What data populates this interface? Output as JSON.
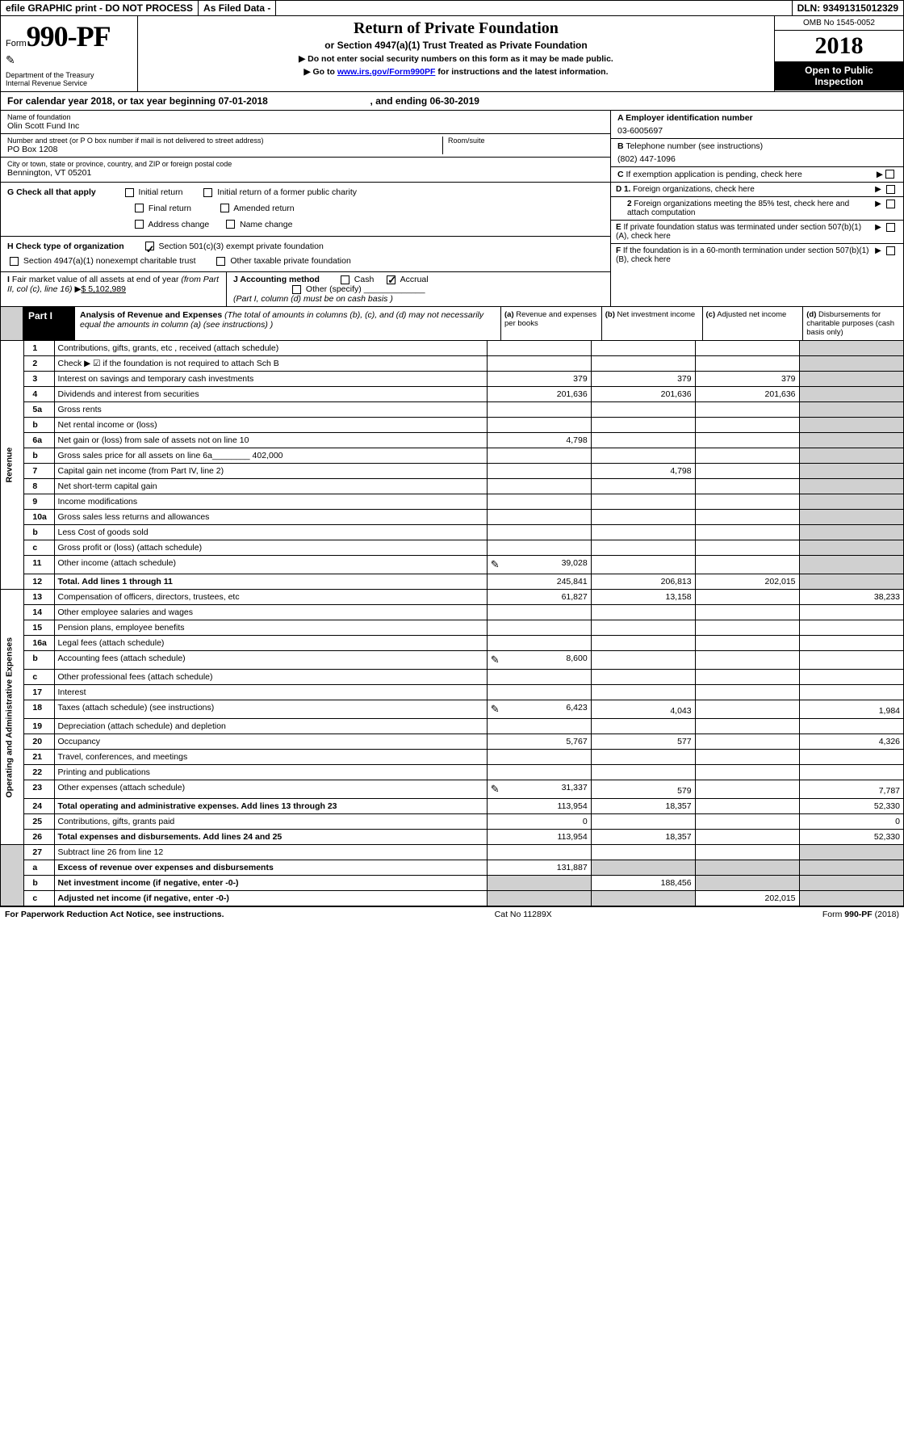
{
  "efile": {
    "left": "efile GRAPHIC print - DO NOT PROCESS",
    "mid": "As Filed Data -",
    "dln": "DLN: 93491315012329"
  },
  "header": {
    "form_word": "Form",
    "form_num": "990-PF",
    "dept1": "Department of the Treasury",
    "dept2": "Internal Revenue Service",
    "title": "Return of Private Foundation",
    "subtitle": "or Section 4947(a)(1) Trust Treated as Private Foundation",
    "instr1": "▶ Do not enter social security numbers on this form as it may be made public.",
    "instr2_pre": "▶ Go to ",
    "instr2_link": "www.irs.gov/Form990PF",
    "instr2_post": " for instructions and the latest information.",
    "omb": "OMB No 1545-0052",
    "year": "2018",
    "inspect1": "Open to Public",
    "inspect2": "Inspection"
  },
  "calyear": {
    "pre": "For calendar year 2018, or tax year beginning ",
    "begin": "07-01-2018",
    "mid": " , and ending ",
    "end": "06-30-2019"
  },
  "id": {
    "name_lbl": "Name of foundation",
    "name": "Olin Scott Fund Inc",
    "addr_lbl": "Number and street (or P O  box number if mail is not delivered to street address)",
    "addr": "PO Box 1208",
    "room_lbl": "Room/suite",
    "city_lbl": "City or town, state or province, country, and ZIP or foreign postal code",
    "city": "Bennington, VT  05201",
    "a_lbl": "A Employer identification number",
    "a_val": "03-6005697",
    "b_lbl": "B Telephone number (see instructions)",
    "b_val": "(802) 447-1096",
    "c_lbl": "C If exemption application is pending, check here"
  },
  "checks": {
    "g_lbl": "G Check all that apply",
    "g_items": [
      "Initial return",
      "Initial return of a former public charity",
      "Final return",
      "Amended return",
      "Address change",
      "Name change"
    ],
    "h_lbl": "H Check type of organization",
    "h1": "Section 501(c)(3) exempt private foundation",
    "h2": "Section 4947(a)(1) nonexempt charitable trust",
    "h3": "Other taxable private foundation",
    "i_lbl": "I Fair market value of all assets at end of year (from Part II, col (c), line 16) ▶",
    "i_val": "$  5,102,989",
    "j_lbl": "J Accounting method",
    "j_cash": "Cash",
    "j_accr": "Accrual",
    "j_other": "Other (specify)",
    "j_note": "(Part I, column (d) must be on cash basis )",
    "d1": "D 1. Foreign organizations, check here",
    "d2": "2 Foreign organizations meeting the 85% test, check here and attach computation",
    "e": "E  If private foundation status was terminated under section 507(b)(1)(A), check here",
    "f": "F  If the foundation is in a 60-month termination under section 507(b)(1)(B), check here"
  },
  "part1": {
    "label": "Part I",
    "head": "Analysis of Revenue and Expenses",
    "head_note": " (The total of amounts in columns (b), (c), and (d) may not necessarily equal the amounts in column (a) (see instructions) )",
    "col_a": "(a) Revenue and expenses per books",
    "col_b": "(b) Net investment income",
    "col_c": "(c) Adjusted net income",
    "col_d": "(d) Disbursements for charitable purposes (cash basis only)"
  },
  "side": {
    "rev": "Revenue",
    "exp": "Operating and Administrative Expenses"
  },
  "rows": [
    {
      "n": "1",
      "d": "Contributions, gifts, grants, etc , received (attach schedule)",
      "a": "",
      "b": "",
      "c": "",
      "dd": "",
      "bgrey": false
    },
    {
      "n": "2",
      "d": "Check ▶ ☑ if the foundation is not required to attach Sch B",
      "a": "",
      "b": "",
      "c": "",
      "dd": ""
    },
    {
      "n": "3",
      "d": "Interest on savings and temporary cash investments",
      "a": "379",
      "b": "379",
      "c": "379",
      "dd": ""
    },
    {
      "n": "4",
      "d": "Dividends and interest from securities",
      "a": "201,636",
      "b": "201,636",
      "c": "201,636",
      "dd": ""
    },
    {
      "n": "5a",
      "d": "Gross rents",
      "a": "",
      "b": "",
      "c": "",
      "dd": ""
    },
    {
      "n": "b",
      "d": "Net rental income or (loss)",
      "a": "",
      "b": "",
      "c": "",
      "dd": ""
    },
    {
      "n": "6a",
      "d": "Net gain or (loss) from sale of assets not on line 10",
      "a": "4,798",
      "b": "",
      "c": "",
      "dd": ""
    },
    {
      "n": "b",
      "d": "Gross sales price for all assets on line 6a________ 402,000",
      "a": "",
      "b": "",
      "c": "",
      "dd": ""
    },
    {
      "n": "7",
      "d": "Capital gain net income (from Part IV, line 2)",
      "a": "",
      "b": "4,798",
      "c": "",
      "dd": ""
    },
    {
      "n": "8",
      "d": "Net short-term capital gain",
      "a": "",
      "b": "",
      "c": "",
      "dd": ""
    },
    {
      "n": "9",
      "d": "Income modifications",
      "a": "",
      "b": "",
      "c": "",
      "dd": ""
    },
    {
      "n": "10a",
      "d": "Gross sales less returns and allowances",
      "a": "",
      "b": "",
      "c": "",
      "dd": ""
    },
    {
      "n": "b",
      "d": "Less  Cost of goods sold",
      "a": "",
      "b": "",
      "c": "",
      "dd": ""
    },
    {
      "n": "c",
      "d": "Gross profit or (loss) (attach schedule)",
      "a": "",
      "b": "",
      "c": "",
      "dd": ""
    },
    {
      "n": "11",
      "d": "Other income (attach schedule)",
      "a": "39,028",
      "b": "",
      "c": "",
      "dd": "",
      "ic": true
    },
    {
      "n": "12",
      "d": "Total. Add lines 1 through 11",
      "a": "245,841",
      "b": "206,813",
      "c": "202,015",
      "dd": "",
      "bold": true
    }
  ],
  "exp_rows": [
    {
      "n": "13",
      "d": "Compensation of officers, directors, trustees, etc",
      "a": "61,827",
      "b": "13,158",
      "c": "",
      "dd": "38,233"
    },
    {
      "n": "14",
      "d": "Other employee salaries and wages",
      "a": "",
      "b": "",
      "c": "",
      "dd": ""
    },
    {
      "n": "15",
      "d": "Pension plans, employee benefits",
      "a": "",
      "b": "",
      "c": "",
      "dd": ""
    },
    {
      "n": "16a",
      "d": "Legal fees (attach schedule)",
      "a": "",
      "b": "",
      "c": "",
      "dd": ""
    },
    {
      "n": "b",
      "d": "Accounting fees (attach schedule)",
      "a": "8,600",
      "b": "",
      "c": "",
      "dd": "",
      "ic": true
    },
    {
      "n": "c",
      "d": "Other professional fees (attach schedule)",
      "a": "",
      "b": "",
      "c": "",
      "dd": ""
    },
    {
      "n": "17",
      "d": "Interest",
      "a": "",
      "b": "",
      "c": "",
      "dd": ""
    },
    {
      "n": "18",
      "d": "Taxes (attach schedule) (see instructions)",
      "a": "6,423",
      "b": "4,043",
      "c": "",
      "dd": "1,984",
      "ic": true
    },
    {
      "n": "19",
      "d": "Depreciation (attach schedule) and depletion",
      "a": "",
      "b": "",
      "c": "",
      "dd": ""
    },
    {
      "n": "20",
      "d": "Occupancy",
      "a": "5,767",
      "b": "577",
      "c": "",
      "dd": "4,326"
    },
    {
      "n": "21",
      "d": "Travel, conferences, and meetings",
      "a": "",
      "b": "",
      "c": "",
      "dd": ""
    },
    {
      "n": "22",
      "d": "Printing and publications",
      "a": "",
      "b": "",
      "c": "",
      "dd": ""
    },
    {
      "n": "23",
      "d": "Other expenses (attach schedule)",
      "a": "31,337",
      "b": "579",
      "c": "",
      "dd": "7,787",
      "ic": true
    },
    {
      "n": "24",
      "d": "Total operating and administrative expenses. Add lines 13 through 23",
      "a": "113,954",
      "b": "18,357",
      "c": "",
      "dd": "52,330",
      "bold": true
    },
    {
      "n": "25",
      "d": "Contributions, gifts, grants paid",
      "a": "0",
      "b": "",
      "c": "",
      "dd": "0"
    },
    {
      "n": "26",
      "d": "Total expenses and disbursements. Add lines 24 and 25",
      "a": "113,954",
      "b": "18,357",
      "c": "",
      "dd": "52,330",
      "bold": true
    }
  ],
  "bottom_rows": [
    {
      "n": "27",
      "d": "Subtract line 26 from line 12",
      "a": "",
      "b": "",
      "c": "",
      "dd": ""
    },
    {
      "n": "a",
      "d": "Excess of revenue over expenses and disbursements",
      "a": "131,887",
      "b": "",
      "c": "",
      "dd": "",
      "bold": true
    },
    {
      "n": "b",
      "d": "Net investment income (if negative, enter -0-)",
      "a": "",
      "b": "188,456",
      "c": "",
      "dd": "",
      "bold": true
    },
    {
      "n": "c",
      "d": "Adjusted net income (if negative, enter -0-)",
      "a": "",
      "b": "",
      "c": "202,015",
      "dd": "",
      "bold": true
    }
  ],
  "footer": {
    "left": "For Paperwork Reduction Act Notice, see instructions.",
    "mid": "Cat No 11289X",
    "right_pre": "Form ",
    "right_b": "990-PF",
    "right_post": " (2018)"
  }
}
